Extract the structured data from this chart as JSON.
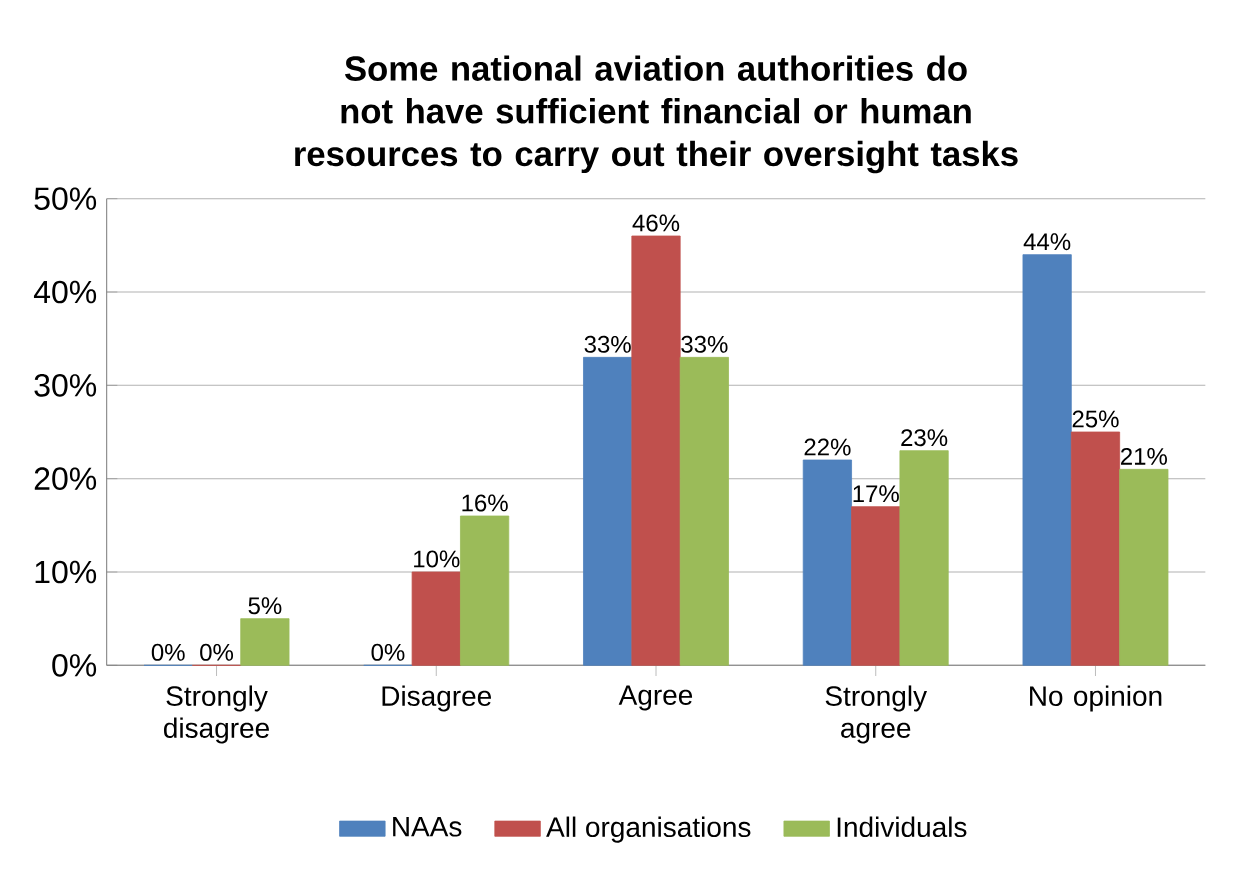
{
  "chart_data": {
    "type": "bar",
    "title": "Some national aviation authorities do not have sufficient financial or human resources to carry out their oversight tasks",
    "categories": [
      "Strongly disagree",
      "Disagree",
      "Agree",
      "Strongly agree",
      "No opinion"
    ],
    "series": [
      {
        "name": "NAAs",
        "color": "#4f81bd",
        "values": [
          0,
          0,
          33,
          22,
          44
        ],
        "value_labels": [
          "0%",
          "0%",
          "33%",
          "22%",
          "44%"
        ]
      },
      {
        "name": "All organisations",
        "color": "#c0504d",
        "values": [
          0,
          10,
          46,
          17,
          25
        ],
        "value_labels": [
          "0%",
          "10%",
          "46%",
          "17%",
          "25%"
        ]
      },
      {
        "name": "Individuals",
        "color": "#9bbb59",
        "values": [
          5,
          16,
          33,
          23,
          21
        ],
        "value_labels": [
          "5%",
          "16%",
          "33%",
          "23%",
          "21%"
        ]
      }
    ],
    "ylim": [
      0,
      50
    ],
    "yticks": [
      {
        "value": 0,
        "label": "0%"
      },
      {
        "value": 10,
        "label": "10%"
      },
      {
        "value": 20,
        "label": "20%"
      },
      {
        "value": 30,
        "label": "30%"
      },
      {
        "value": 40,
        "label": "40%"
      },
      {
        "value": 50,
        "label": "50%"
      }
    ],
    "grid": "y",
    "legend": "bottom"
  }
}
